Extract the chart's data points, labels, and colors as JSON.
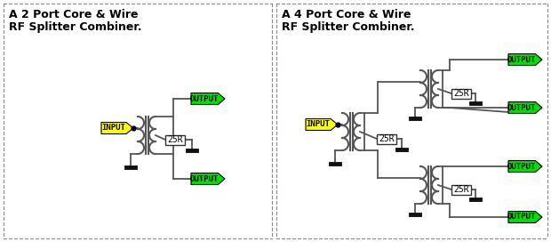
{
  "bg_color": "#ffffff",
  "border_color": "#7a7a7a",
  "wire_color": "#555555",
  "inductor_color": "#555555",
  "input_fill": "#ffff00",
  "output_fill": "#00dd00",
  "label_color": "#000000",
  "resistor_fill": "#ffffff",
  "left_panel_title_line1": "A 2 Port Core & Wire",
  "left_panel_title_line2": "RF Splitter Combiner.",
  "right_panel_title_line1": "A 4 Port Core & Wire",
  "right_panel_title_line2": "RF Splitter Combiner.",
  "figsize": [
    6.2,
    2.72
  ],
  "dpi": 100
}
